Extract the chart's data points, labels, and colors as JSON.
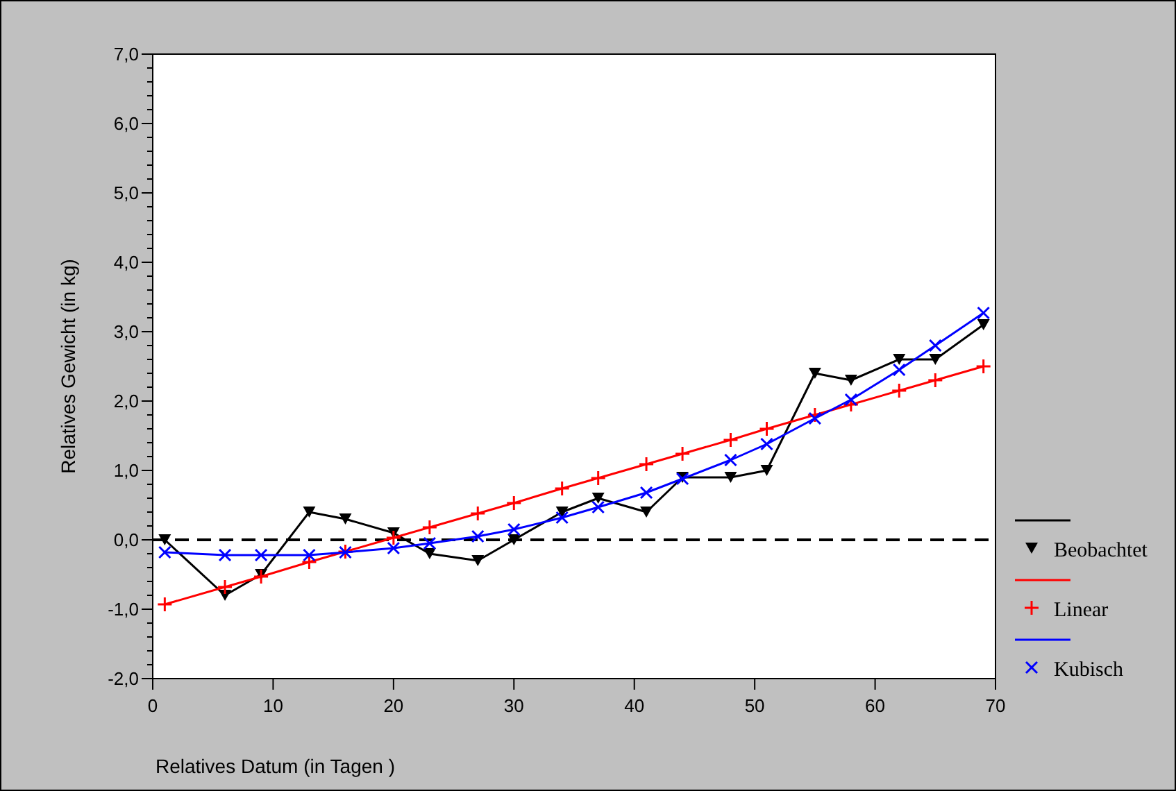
{
  "chart_data": {
    "type": "line",
    "xlabel": "Relatives Datum (in Tagen )",
    "ylabel": "Relatives Gewicht (in kg)",
    "x": [
      1,
      6,
      9,
      13,
      16,
      20,
      23,
      27,
      30,
      34,
      37,
      41,
      44,
      48,
      51,
      55,
      58,
      62,
      65,
      69
    ],
    "series": [
      {
        "name": "Beobachtet",
        "color": "#000000",
        "marker": "triangle",
        "values": [
          0,
          -0.8,
          -0.5,
          0.4,
          0.3,
          0.1,
          -0.2,
          -0.3,
          0,
          0.4,
          0.6,
          0.4,
          0.9,
          0.9,
          1.0,
          2.4,
          2.3,
          2.6,
          2.6,
          3.1
        ]
      },
      {
        "name": "Linear",
        "color": "#ff0000",
        "marker": "plus",
        "values": [
          -0.93,
          -0.68,
          -0.53,
          -0.32,
          -0.17,
          0.03,
          0.18,
          0.38,
          0.53,
          0.74,
          0.89,
          1.09,
          1.24,
          1.44,
          1.6,
          1.8,
          1.95,
          2.15,
          2.3,
          2.5
        ]
      },
      {
        "name": "Kubisch",
        "color": "#0000ff",
        "marker": "cross",
        "values": [
          -0.18,
          -0.22,
          -0.22,
          -0.22,
          -0.18,
          -0.12,
          -0.05,
          0.05,
          0.15,
          0.32,
          0.47,
          0.68,
          0.88,
          1.15,
          1.38,
          1.75,
          2.02,
          2.45,
          2.8,
          3.27
        ]
      }
    ],
    "xlim": [
      0,
      70
    ],
    "xticks": [
      0,
      10,
      20,
      30,
      40,
      50,
      60,
      70
    ],
    "ylim": [
      -2,
      7
    ],
    "yticks": [
      {
        "value": -2,
        "label": "-2,0"
      },
      {
        "value": -1,
        "label": "-1,0"
      },
      {
        "value": 0,
        "label": "0,0"
      },
      {
        "value": 1,
        "label": "1,0"
      },
      {
        "value": 2,
        "label": "2,0"
      },
      {
        "value": 3,
        "label": "3,0"
      },
      {
        "value": 4,
        "label": "4,0"
      },
      {
        "value": 5,
        "label": "5,0"
      },
      {
        "value": 6,
        "label": "6,0"
      },
      {
        "value": 7,
        "label": "7,0"
      }
    ],
    "ref_lines": [
      {
        "axis": "y",
        "value": 0,
        "color": "#000000",
        "line_style": "dashed"
      }
    ],
    "grid": false,
    "legend": "right",
    "line_style": "solid"
  }
}
